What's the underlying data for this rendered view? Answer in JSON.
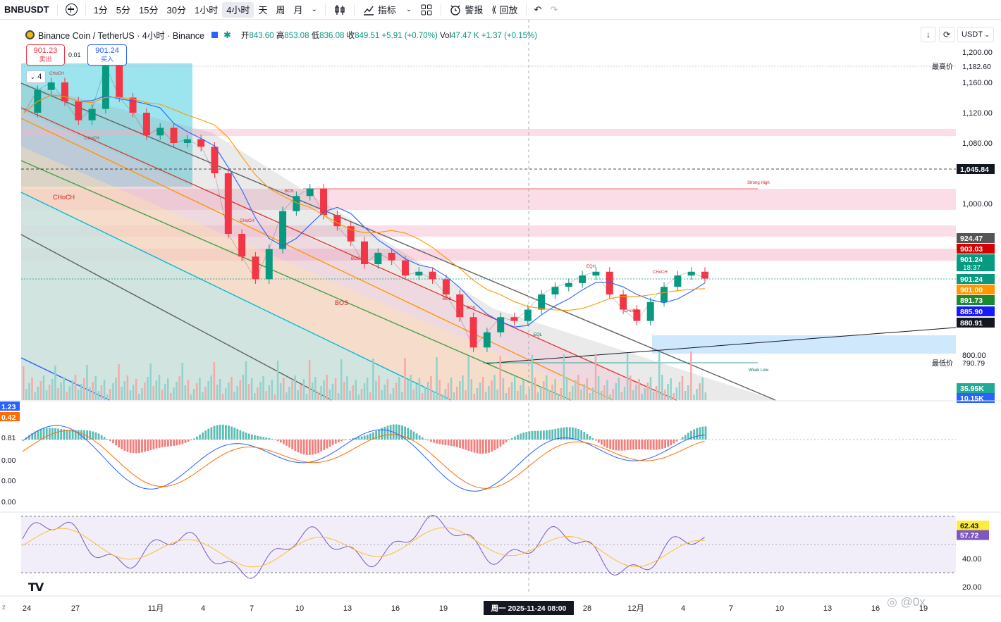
{
  "toolbar": {
    "symbol": "BNBUSDT",
    "intervals": [
      "1分",
      "5分",
      "15分",
      "30分",
      "1小时",
      "4小时",
      "天",
      "周",
      "月"
    ],
    "active_interval": "4小时",
    "indicators_label": "指标",
    "alert_label": "警报",
    "replay_label": "回放"
  },
  "legend": {
    "title": "Binance Coin / TetherUS · 4小时 · Binance",
    "open_label": "开",
    "open": "843.60",
    "high_label": "高",
    "high": "853.08",
    "low_label": "低",
    "low": "836.08",
    "close_label": "收",
    "close": "849.51",
    "change": "+5.91 (+0.70%)",
    "vol_label": "Vol",
    "vol": "47.47 K",
    "vol_change": "+1.37 (+0.15%)"
  },
  "order_panel": {
    "sell_price": "901.23",
    "sell_label": "卖出",
    "spread": "0.01",
    "buy_price": "901.24",
    "buy_label": "买入",
    "collapse_count": "4"
  },
  "currency": "USDT",
  "colors": {
    "up": "#089981",
    "down": "#f23645",
    "ma_blue": "#2962ff",
    "accent_cyan": "#00bcd4"
  },
  "price_axis": {
    "ticks": [
      "1,200.00",
      "1,160.00",
      "1,120.00",
      "1,080.00",
      "1,000.00",
      "800.00"
    ],
    "labels": [
      {
        "text": "1,182.60",
        "prefix": "最高价",
        "color": "#ffffff",
        "text_color": "#131722"
      },
      {
        "text": "1,045.84",
        "color": "#131722",
        "text_color": "#ffffff"
      },
      {
        "text": "924.47",
        "color": "#555555",
        "text_color": "#ffffff"
      },
      {
        "text": "903.03",
        "color": "#d50000",
        "text_color": "#ffffff"
      },
      {
        "text": "901.24",
        "sub": "18:37",
        "color": "#089981",
        "text_color": "#ffffff"
      },
      {
        "text": "901.24",
        "color": "#089981",
        "text_color": "#ffffff"
      },
      {
        "text": "901.00",
        "color": "#ff9800",
        "text_color": "#ffffff"
      },
      {
        "text": "891.73",
        "color": "#1b8a2f",
        "text_color": "#ffffff"
      },
      {
        "text": "885.90",
        "color": "#1a1aff",
        "text_color": "#ffffff"
      },
      {
        "text": "880.91",
        "color": "#131722",
        "text_color": "#ffffff"
      },
      {
        "text": "790.79",
        "prefix": "最低价",
        "color": "#ffffff",
        "text_color": "#131722"
      },
      {
        "text": "35.95K",
        "color": "#22ab94",
        "text_color": "#ffffff"
      },
      {
        "text": "10.15K",
        "color": "#2962ff",
        "text_color": "#ffffff"
      }
    ]
  },
  "macd_axis": {
    "left_labels": [
      "1.23",
      "0.42",
      "0.81",
      "0.00",
      "0.00",
      "0.00"
    ]
  },
  "rsi_axis": {
    "ticks": [
      "40.00",
      "20.00"
    ],
    "labels": [
      {
        "text": "62.43",
        "color": "#ffeb3b"
      },
      {
        "text": "57.72",
        "color": "#7e57c2"
      }
    ]
  },
  "time_axis": {
    "ticks": [
      "24",
      "27",
      "11月",
      "4",
      "7",
      "10",
      "13",
      "16",
      "19",
      "28",
      "12月",
      "4",
      "7",
      "10",
      "13",
      "16",
      "19"
    ],
    "crosshair_label": "周一 2025-11-24   08:00"
  },
  "annotations": [
    "CHoCH",
    "CHoCH",
    "CHoCH",
    "CHoCH",
    "BOS",
    "BOS",
    "BOS",
    "BOS",
    "BOS",
    "EQH",
    "CHoCH",
    "CHoCH",
    "EQL",
    "Strong High",
    "Weak Low"
  ],
  "chart_data": {
    "type": "line",
    "title": "Binance Coin / TetherUS · 4小时 · Binance",
    "xlabel": "",
    "ylabel": "",
    "ylim": [
      760,
      1220
    ],
    "series": [
      {
        "values": [
          1120,
          1150,
          1160,
          1135,
          1110,
          1125,
          1182,
          1140,
          1120,
          1090,
          1100,
          1080,
          1085,
          1075,
          1040,
          960,
          930,
          900,
          940,
          990,
          1010,
          1020,
          985,
          970,
          950,
          920,
          935,
          925,
          905,
          910,
          900,
          880,
          850,
          810,
          830,
          850,
          845,
          860,
          880,
          890,
          895,
          905,
          910,
          880,
          860,
          845,
          870,
          890,
          905,
          910,
          901
        ]
      }
    ],
    "rsi": {
      "value": 57.72,
      "ma": 62.43,
      "ylim": [
        10,
        80
      ]
    },
    "high": 1182.6,
    "low": 790.79
  }
}
